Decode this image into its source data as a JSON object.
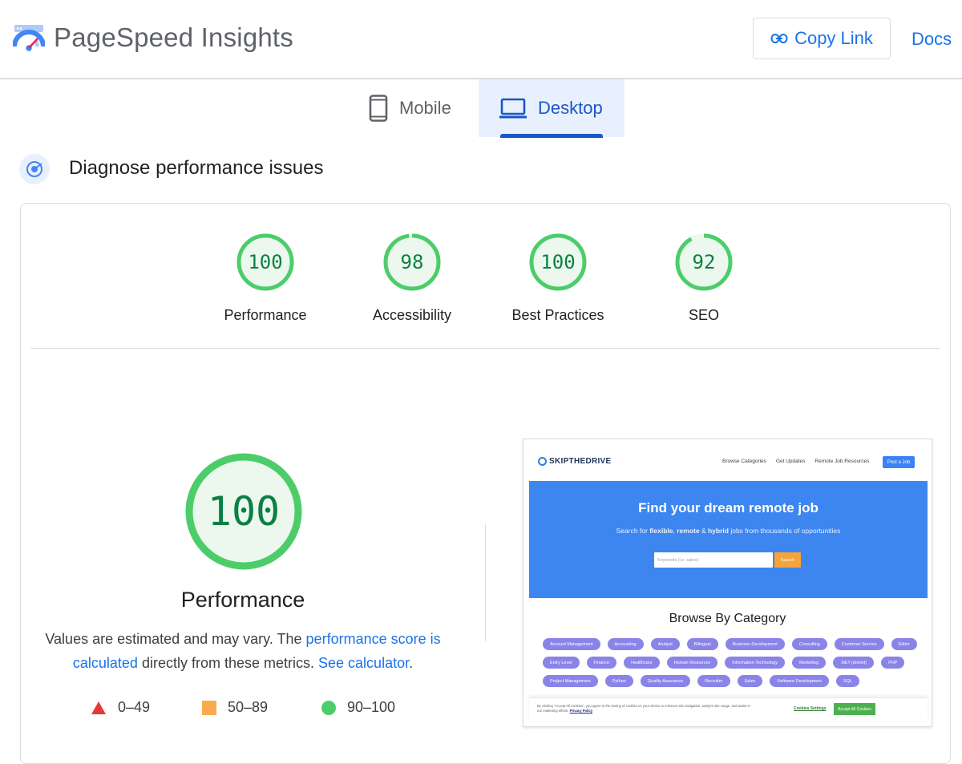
{
  "header": {
    "title": "PageSpeed Insights",
    "copy_link_label": "Copy Link",
    "docs_label": "Docs"
  },
  "tabs": [
    {
      "label": "Mobile",
      "icon": "phone-icon",
      "active": false
    },
    {
      "label": "Desktop",
      "icon": "laptop-icon",
      "active": true
    }
  ],
  "section": {
    "title": "Diagnose performance issues"
  },
  "scores": [
    {
      "label": "Performance",
      "value": 100
    },
    {
      "label": "Accessibility",
      "value": 98
    },
    {
      "label": "Best Practices",
      "value": 100
    },
    {
      "label": "SEO",
      "value": 92
    }
  ],
  "performance": {
    "value": 100,
    "label": "Performance",
    "note_prefix": "Values are estimated and may vary. The ",
    "note_link1": "performance score is calculated",
    "note_middle": " directly from these metrics. ",
    "note_link2": "See calculator",
    "note_suffix": "."
  },
  "legend": [
    {
      "label": "0–49",
      "color": "#e53935",
      "shape": "triangle"
    },
    {
      "label": "50–89",
      "color": "#fbab4d",
      "shape": "square"
    },
    {
      "label": "90–100",
      "color": "#4ccd6a",
      "shape": "circle"
    }
  ],
  "screenshot": {
    "logo": "SKIPTHEDRIVE",
    "nav_links": [
      "Browse Categories",
      "Get Updates",
      "Remote Job Resources"
    ],
    "post_button": "Post a Job",
    "hero_title": "Find your dream remote job",
    "hero_sub_1": "Search for ",
    "hero_sub_b1": "flexible",
    "hero_sub_2": ", ",
    "hero_sub_b2": "remote",
    "hero_sub_3": " & ",
    "hero_sub_b3": "hybrid",
    "hero_sub_4": " jobs from thousands of opportunities",
    "search_placeholder": "Keywords (i.e. sales)",
    "search_button": "Search",
    "browse_title": "Browse By Category",
    "categories": [
      "Account Management",
      "Accounting",
      "Analyst",
      "Bilingual",
      "Business Development",
      "Consulting",
      "Customer Service",
      "Editor",
      "Entry Level",
      "Finance",
      "Healthcare",
      "Human Resources",
      "Information Technology",
      "Marketing",
      ".NET (dotnet)",
      "PHP",
      "Project Management",
      "Python",
      "Quality Assurance",
      "Recruiter",
      "Sales",
      "Software Development",
      "SQL"
    ],
    "cookie_text": "By clicking \"Accept All Cookies\", you agree to the storing of cookies on your device to enhance site navigation, analyze site usage, and assist in our marketing efforts.",
    "cookie_policy": "Privacy Policy",
    "cookie_settings": "Cookies Settings",
    "cookie_accept": "Accept All Cookies"
  },
  "colors": {
    "pass_ring": "#4ccd6a",
    "pass_fill": "#ecf8ee",
    "pass_text": "#0b8043",
    "accent": "#1a73e8"
  }
}
